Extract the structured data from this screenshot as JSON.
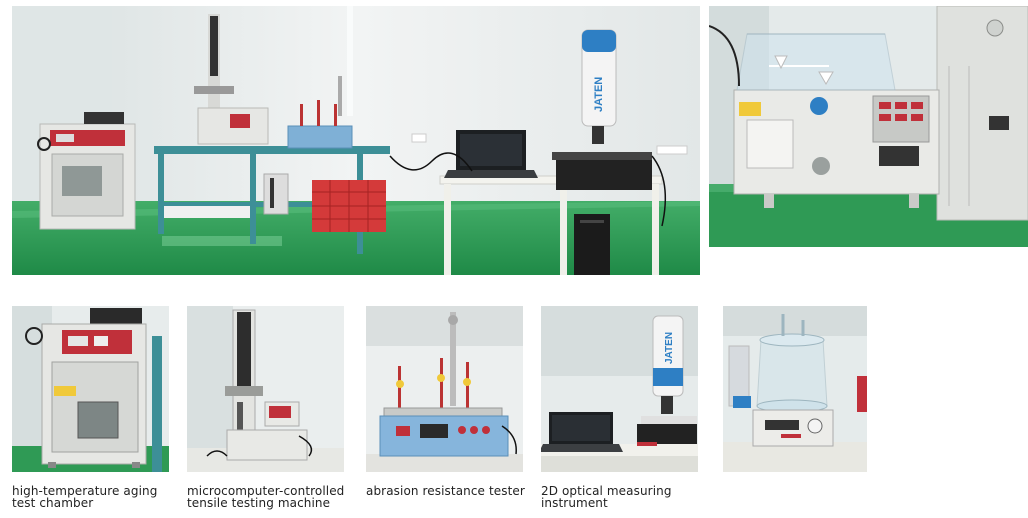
{
  "photos": {
    "lab_overview": {
      "brand_text": "JATEN"
    },
    "salt_spray_chamber": {},
    "aging_chamber": {},
    "tensile_machine": {},
    "abrasion_tester": {},
    "optical_instrument": {
      "brand_text": "JATEN"
    },
    "glass_vessel_tester": {}
  },
  "captions": {
    "aging_chamber": [
      "high-temperature aging",
      "test chamber"
    ],
    "tensile_machine": [
      "microcomputer-controlled",
      "tensile testing machine"
    ],
    "abrasion_tester": [
      "abrasion resistance tester"
    ],
    "optical_instrument": [
      "2D optical measuring",
      "instrument"
    ]
  },
  "colors": {
    "wall": "#e9eeee",
    "floor_green": "#2f9a55",
    "machine_white": "#e7e8e6",
    "panel_red": "#c0303a",
    "panel_blue": "#2e7fc4",
    "frame_teal": "#3d8f97"
  }
}
